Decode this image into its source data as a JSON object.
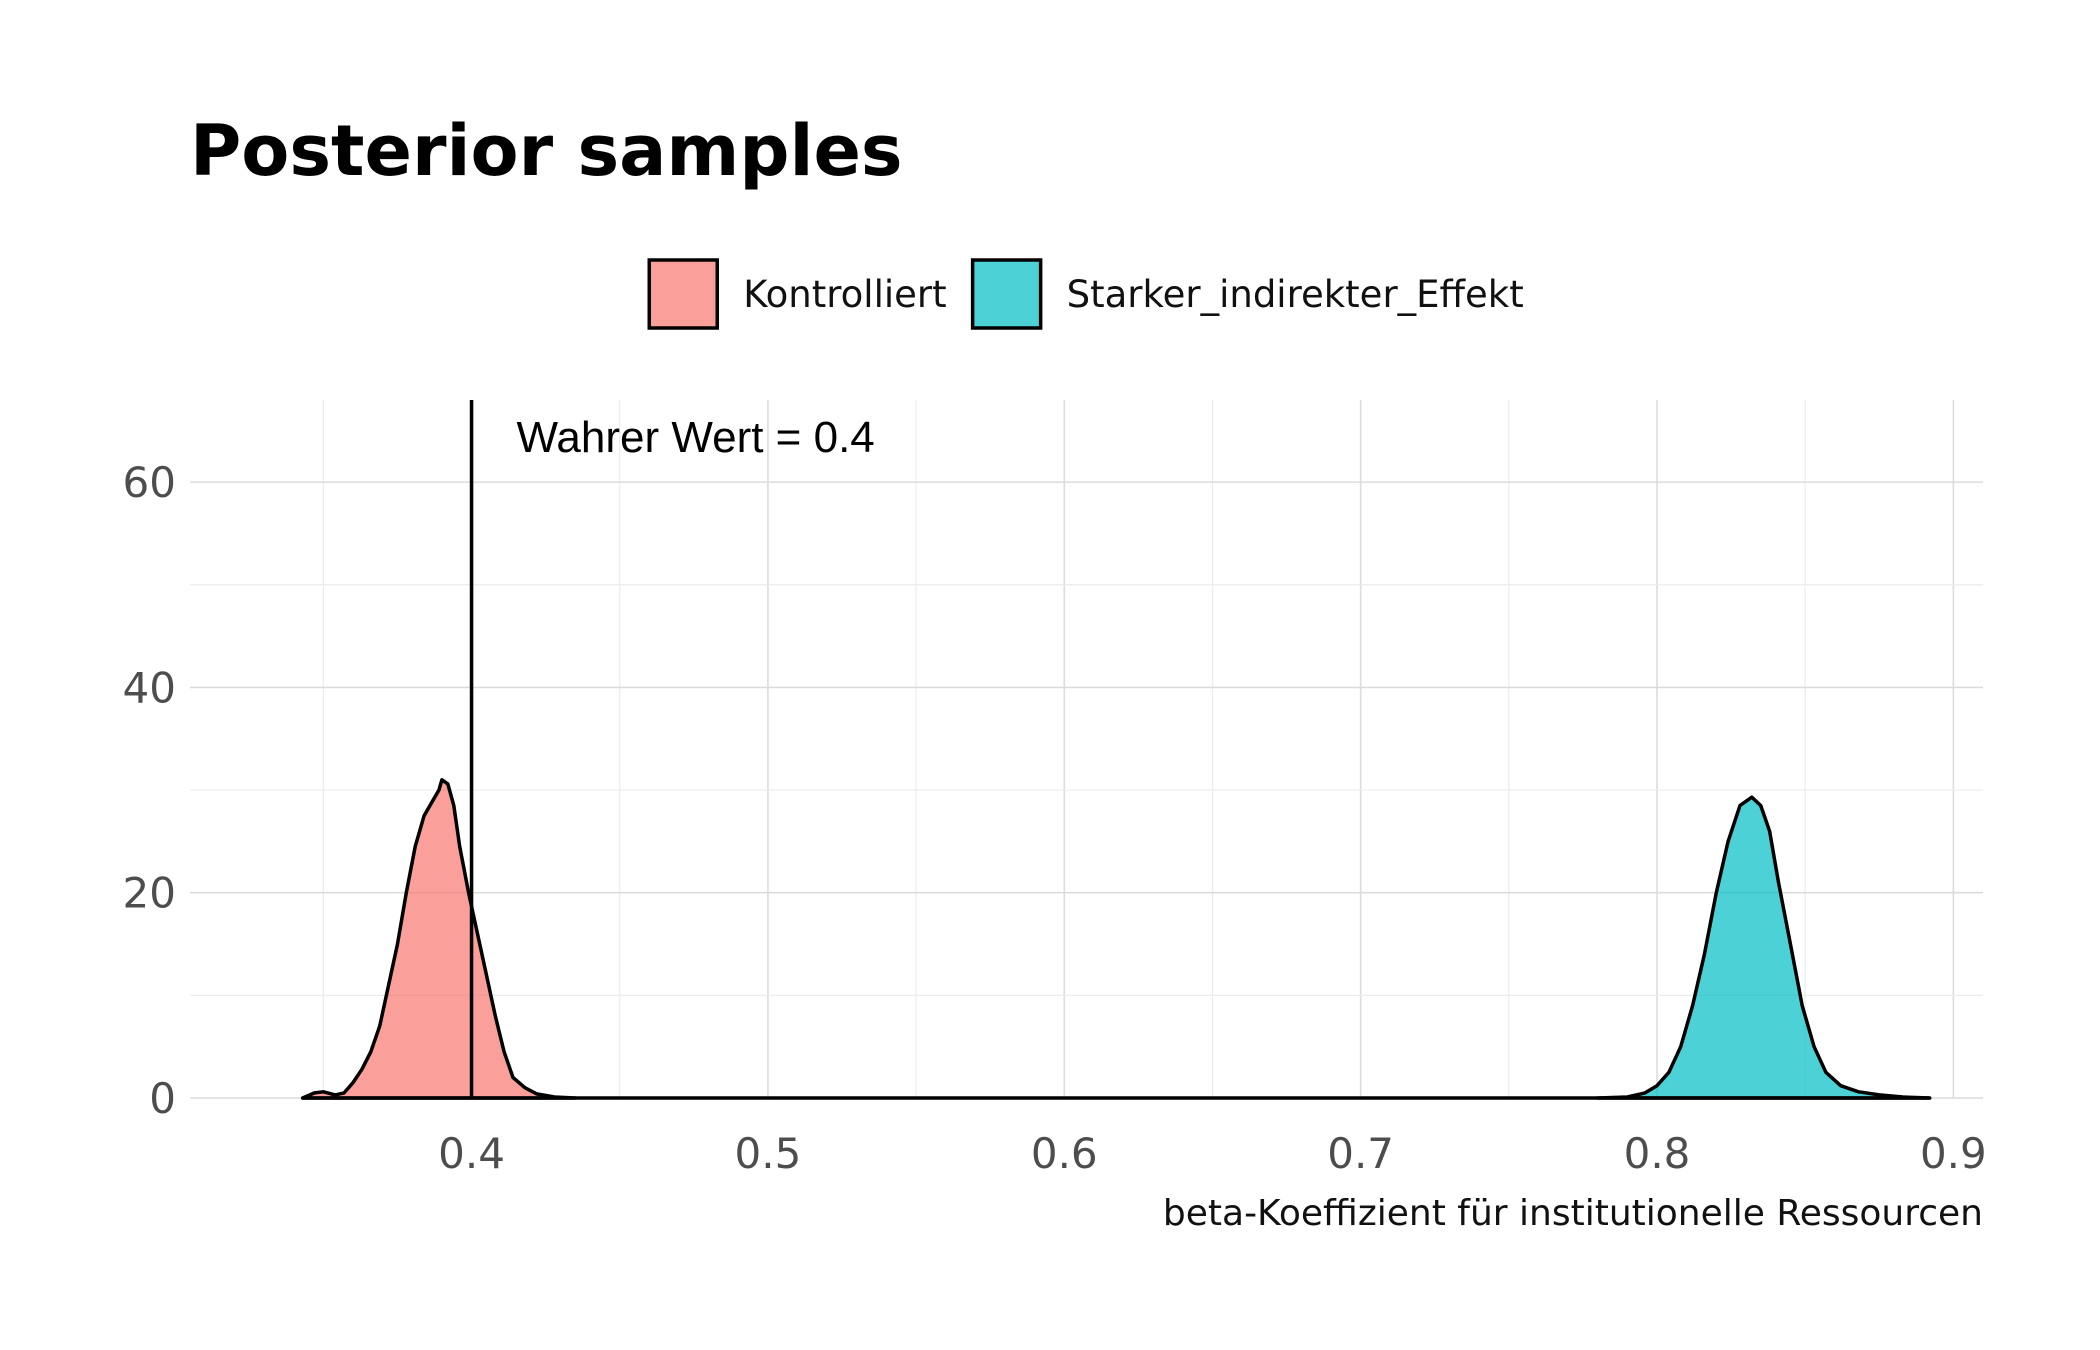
{
  "chart_data": {
    "type": "area",
    "title": "Posterior samples",
    "xlabel": "beta-Koeffizient für institutionelle Ressourcen",
    "ylabel": "",
    "xlim": [
      0.305,
      0.91
    ],
    "ylim": [
      0,
      68
    ],
    "x_ticks": [
      {
        "value": 0.4,
        "label": "0.4"
      },
      {
        "value": 0.5,
        "label": "0.5"
      },
      {
        "value": 0.6,
        "label": "0.6"
      },
      {
        "value": 0.7,
        "label": "0.7"
      },
      {
        "value": 0.8,
        "label": "0.8"
      },
      {
        "value": 0.9,
        "label": "0.9"
      }
    ],
    "y_ticks": [
      {
        "value": 0,
        "label": "0"
      },
      {
        "value": 20,
        "label": "20"
      },
      {
        "value": 40,
        "label": "40"
      },
      {
        "value": 60,
        "label": "60"
      }
    ],
    "grid": true,
    "legend_position": "top",
    "legend": [
      {
        "label": "Kontrolliert",
        "color": "#F8766D"
      },
      {
        "label": "Starker_indirekter_Effekt",
        "color": "#00BFC4"
      }
    ],
    "series": [
      {
        "name": "Kontrolliert",
        "color": "#F8766D",
        "points": [
          [
            0.343,
            0.0
          ],
          [
            0.347,
            0.5
          ],
          [
            0.35,
            0.6
          ],
          [
            0.354,
            0.3
          ],
          [
            0.357,
            0.5
          ],
          [
            0.36,
            1.5
          ],
          [
            0.363,
            2.8
          ],
          [
            0.366,
            4.5
          ],
          [
            0.369,
            7.0
          ],
          [
            0.372,
            11.0
          ],
          [
            0.375,
            15.0
          ],
          [
            0.378,
            20.0
          ],
          [
            0.381,
            24.5
          ],
          [
            0.384,
            27.5
          ],
          [
            0.387,
            29.0
          ],
          [
            0.389,
            30.0
          ],
          [
            0.39,
            31.0
          ],
          [
            0.392,
            30.6
          ],
          [
            0.394,
            28.5
          ],
          [
            0.396,
            24.5
          ],
          [
            0.399,
            20.0
          ],
          [
            0.402,
            16.0
          ],
          [
            0.405,
            12.0
          ],
          [
            0.408,
            8.0
          ],
          [
            0.411,
            4.5
          ],
          [
            0.414,
            2.0
          ],
          [
            0.418,
            1.0
          ],
          [
            0.422,
            0.4
          ],
          [
            0.428,
            0.1
          ],
          [
            0.435,
            0.0
          ]
        ]
      },
      {
        "name": "Starker_indirekter_Effekt",
        "color": "#00BFC4",
        "points": [
          [
            0.78,
            0.0
          ],
          [
            0.79,
            0.1
          ],
          [
            0.796,
            0.5
          ],
          [
            0.8,
            1.2
          ],
          [
            0.804,
            2.5
          ],
          [
            0.808,
            5.0
          ],
          [
            0.812,
            9.0
          ],
          [
            0.816,
            14.0
          ],
          [
            0.82,
            20.0
          ],
          [
            0.824,
            25.0
          ],
          [
            0.828,
            28.5
          ],
          [
            0.832,
            29.3
          ],
          [
            0.835,
            28.5
          ],
          [
            0.838,
            26.0
          ],
          [
            0.841,
            21.0
          ],
          [
            0.845,
            15.0
          ],
          [
            0.849,
            9.0
          ],
          [
            0.853,
            5.0
          ],
          [
            0.857,
            2.5
          ],
          [
            0.862,
            1.2
          ],
          [
            0.868,
            0.6
          ],
          [
            0.875,
            0.3
          ],
          [
            0.883,
            0.1
          ],
          [
            0.892,
            0.0
          ]
        ]
      }
    ],
    "vline": {
      "x": 0.4,
      "label": "Wahrer Wert = 0.4",
      "color": "#000000"
    }
  }
}
